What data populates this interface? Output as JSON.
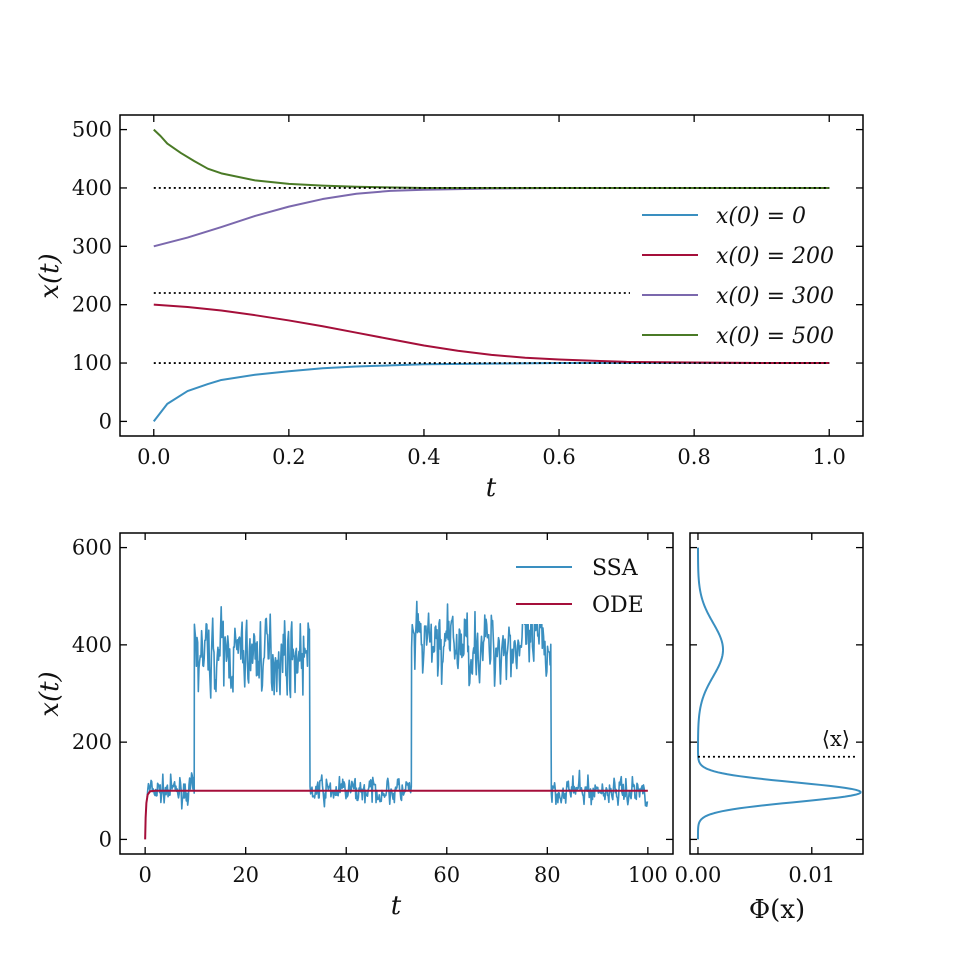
{
  "colors": {
    "blue": "#3a8fc0",
    "red": "#a50f3a",
    "purple": "#7b68ad",
    "green": "#4a7a26",
    "ref": "#000000"
  },
  "chart_data": [
    {
      "id": "top",
      "type": "line",
      "xlabel": "t",
      "ylabel": "x(t)",
      "xlim": [
        -0.05,
        1.05
      ],
      "ylim": [
        -25,
        525
      ],
      "xticks": [
        0.0,
        0.2,
        0.4,
        0.6,
        0.8,
        1.0
      ],
      "xtick_labels": [
        "0.0",
        "0.2",
        "0.4",
        "0.6",
        "0.8",
        "1.0"
      ],
      "yticks": [
        0,
        100,
        200,
        300,
        400,
        500
      ],
      "ytick_labels": [
        "0",
        "100",
        "200",
        "300",
        "400",
        "500"
      ],
      "reference_lines": [
        100,
        220,
        400
      ],
      "legend_position": "right",
      "grid": false,
      "series": [
        {
          "name": "x(0) = 0",
          "color": "#3a8fc0",
          "x": [
            0,
            0.02,
            0.05,
            0.08,
            0.1,
            0.15,
            0.2,
            0.25,
            0.3,
            0.35,
            0.4,
            0.5,
            0.6,
            0.7,
            0.8,
            0.9,
            1.0
          ],
          "y": [
            0,
            30,
            52,
            64,
            71,
            80,
            86,
            91,
            94,
            96,
            98,
            99,
            100,
            100,
            100,
            100,
            100
          ]
        },
        {
          "name": "x(0) = 200",
          "color": "#a50f3a",
          "x": [
            0,
            0.05,
            0.1,
            0.15,
            0.2,
            0.25,
            0.3,
            0.35,
            0.4,
            0.45,
            0.5,
            0.55,
            0.6,
            0.65,
            0.7,
            0.8,
            0.9,
            1.0
          ],
          "y": [
            200,
            196,
            190,
            182,
            173,
            163,
            152,
            141,
            130,
            121,
            114,
            109,
            106,
            104,
            102,
            101,
            100,
            100
          ]
        },
        {
          "name": "x(0) = 300",
          "color": "#7b68ad",
          "x": [
            0,
            0.05,
            0.1,
            0.15,
            0.2,
            0.25,
            0.3,
            0.35,
            0.4,
            0.45,
            0.5,
            0.6,
            0.7,
            0.8,
            0.9,
            1.0
          ],
          "y": [
            300,
            315,
            333,
            352,
            368,
            381,
            390,
            395,
            397,
            398,
            399,
            400,
            400,
            400,
            400,
            400
          ]
        },
        {
          "name": "x(0) = 500",
          "color": "#4a7a26",
          "x": [
            0,
            0.01,
            0.02,
            0.04,
            0.06,
            0.08,
            0.1,
            0.15,
            0.2,
            0.25,
            0.3,
            0.4,
            0.5,
            0.6,
            0.8,
            1.0
          ],
          "y": [
            500,
            489,
            476,
            460,
            446,
            433,
            425,
            413,
            407,
            404,
            402,
            400,
            400,
            400,
            400,
            400
          ]
        }
      ]
    },
    {
      "id": "bottom-left",
      "type": "line",
      "xlabel": "t",
      "ylabel": "x(t)",
      "xlim": [
        -5,
        105
      ],
      "ylim": [
        -30,
        630
      ],
      "xticks": [
        0,
        20,
        40,
        60,
        80,
        100
      ],
      "xtick_labels": [
        "0",
        "20",
        "40",
        "60",
        "80",
        "100"
      ],
      "yticks": [
        0,
        200,
        400,
        600
      ],
      "ytick_labels": [
        "0",
        "200",
        "400",
        "600"
      ],
      "legend_position": "top-right",
      "grid": false,
      "series": [
        {
          "name": "SSA",
          "color": "#3a8fc0",
          "regimes": [
            {
              "from": 0.4,
              "to": 9.8,
              "level": 100,
              "spread": 18
            },
            {
              "from": 9.8,
              "to": 32.8,
              "level": 380,
              "spread": 48
            },
            {
              "from": 32.8,
              "to": 53.0,
              "level": 100,
              "spread": 18
            },
            {
              "from": 53.0,
              "to": 80.8,
              "level": 400,
              "spread": 48
            },
            {
              "from": 80.8,
              "to": 100,
              "level": 100,
              "spread": 18
            }
          ]
        },
        {
          "name": "ODE",
          "color": "#a50f3a",
          "x": [
            0,
            0.1,
            0.25,
            0.5,
            1,
            2,
            100
          ],
          "y": [
            0,
            45,
            75,
            92,
            99,
            100,
            100
          ]
        }
      ]
    },
    {
      "id": "bottom-right",
      "type": "line",
      "xlabel": "Φ(x)",
      "xlim": [
        -0.0007,
        0.0145
      ],
      "ylim": [
        -30,
        630
      ],
      "xticks": [
        0.0,
        0.01
      ],
      "xtick_labels": [
        "0.00",
        "0.01"
      ],
      "yticks": [
        0,
        200,
        400,
        600
      ],
      "mean_line": 170,
      "mean_label": "⟨x⟩",
      "grid": false,
      "series": [
        {
          "color": "#3a8fc0",
          "peaks": [
            {
              "mu": 97,
              "sigma": 20,
              "amp": 0.0143
            },
            {
              "mu": 390,
              "sigma": 55,
              "amp": 0.0022
            }
          ],
          "y_range": [
            0,
            600
          ]
        }
      ]
    }
  ]
}
